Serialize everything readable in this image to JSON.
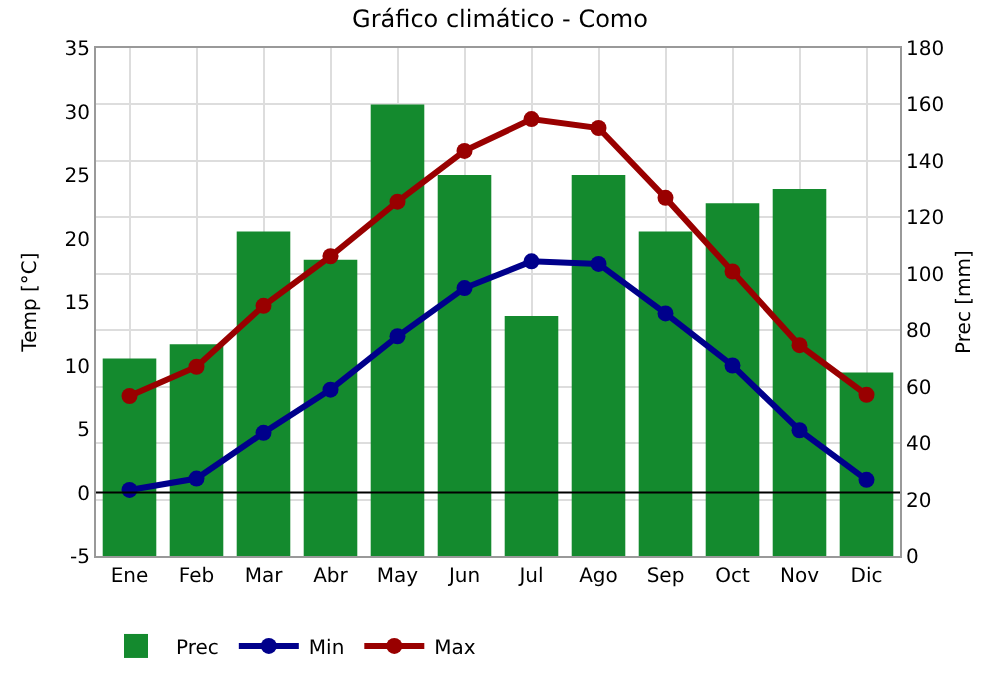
{
  "chart_data": {
    "type": "bar",
    "title": "Gráfico climático - Como",
    "ylabel": "Temp [°C]",
    "y2label": "Prec [mm]",
    "categories": [
      "Ene",
      "Feb",
      "Mar",
      "Abr",
      "May",
      "Jun",
      "Jul",
      "Ago",
      "Sep",
      "Oct",
      "Nov",
      "Dic"
    ],
    "series": [
      {
        "name": "Prec",
        "axis": "y2",
        "color": "#148a2e",
        "values": [
          70,
          75,
          115,
          105,
          160,
          135,
          85,
          135,
          115,
          125,
          130,
          65
        ]
      },
      {
        "name": "Min",
        "type": "line",
        "color": "#00008b",
        "values": [
          0.2,
          1.1,
          4.7,
          8.1,
          12.3,
          16.1,
          18.2,
          18.0,
          14.1,
          10.0,
          4.9,
          1.0
        ]
      },
      {
        "name": "Max",
        "type": "line",
        "color": "#990000",
        "values": [
          7.6,
          9.9,
          14.7,
          18.6,
          22.9,
          26.9,
          29.4,
          28.7,
          23.2,
          17.4,
          11.6,
          7.7
        ]
      }
    ],
    "ylim": [
      -5,
      35
    ],
    "yticks": [
      -5,
      0,
      5,
      10,
      15,
      20,
      25,
      30,
      35
    ],
    "y2lim": [
      0,
      180
    ],
    "y2ticks": [
      0,
      20,
      40,
      60,
      80,
      100,
      120,
      140,
      160,
      180
    ],
    "ref_lines": [
      {
        "axis": "y",
        "value": 0,
        "color": "#000000"
      }
    ],
    "grid": true,
    "legend": "bottom left",
    "marker": "circle",
    "line_style": "solid"
  }
}
